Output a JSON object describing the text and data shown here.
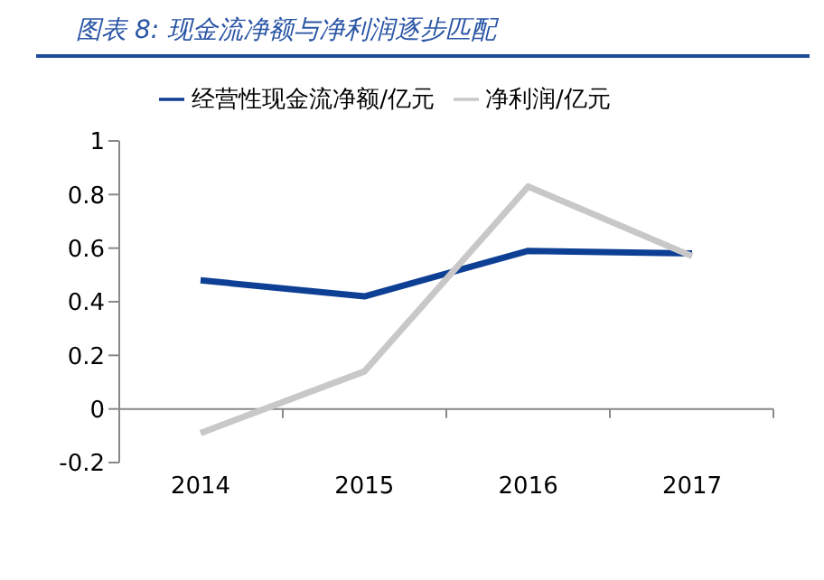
{
  "chart_data": {
    "type": "line",
    "title": "图表 8:  现金流净额与净利润逐步匹配",
    "categories": [
      "2014",
      "2015",
      "2016",
      "2017"
    ],
    "series": [
      {
        "name": "经营性现金流净额/亿元",
        "color": "#0d3f94",
        "values": [
          0.48,
          0.42,
          0.59,
          0.58
        ]
      },
      {
        "name": "净利润/亿元",
        "color": "#c8c8c8",
        "values": [
          -0.09,
          0.14,
          0.83,
          0.57
        ]
      }
    ],
    "ylim": [
      -0.2,
      1
    ],
    "yticks": [
      -0.2,
      0,
      0.2,
      0.4,
      0.6,
      0.8,
      1
    ],
    "legend": "top",
    "marker": "none"
  }
}
